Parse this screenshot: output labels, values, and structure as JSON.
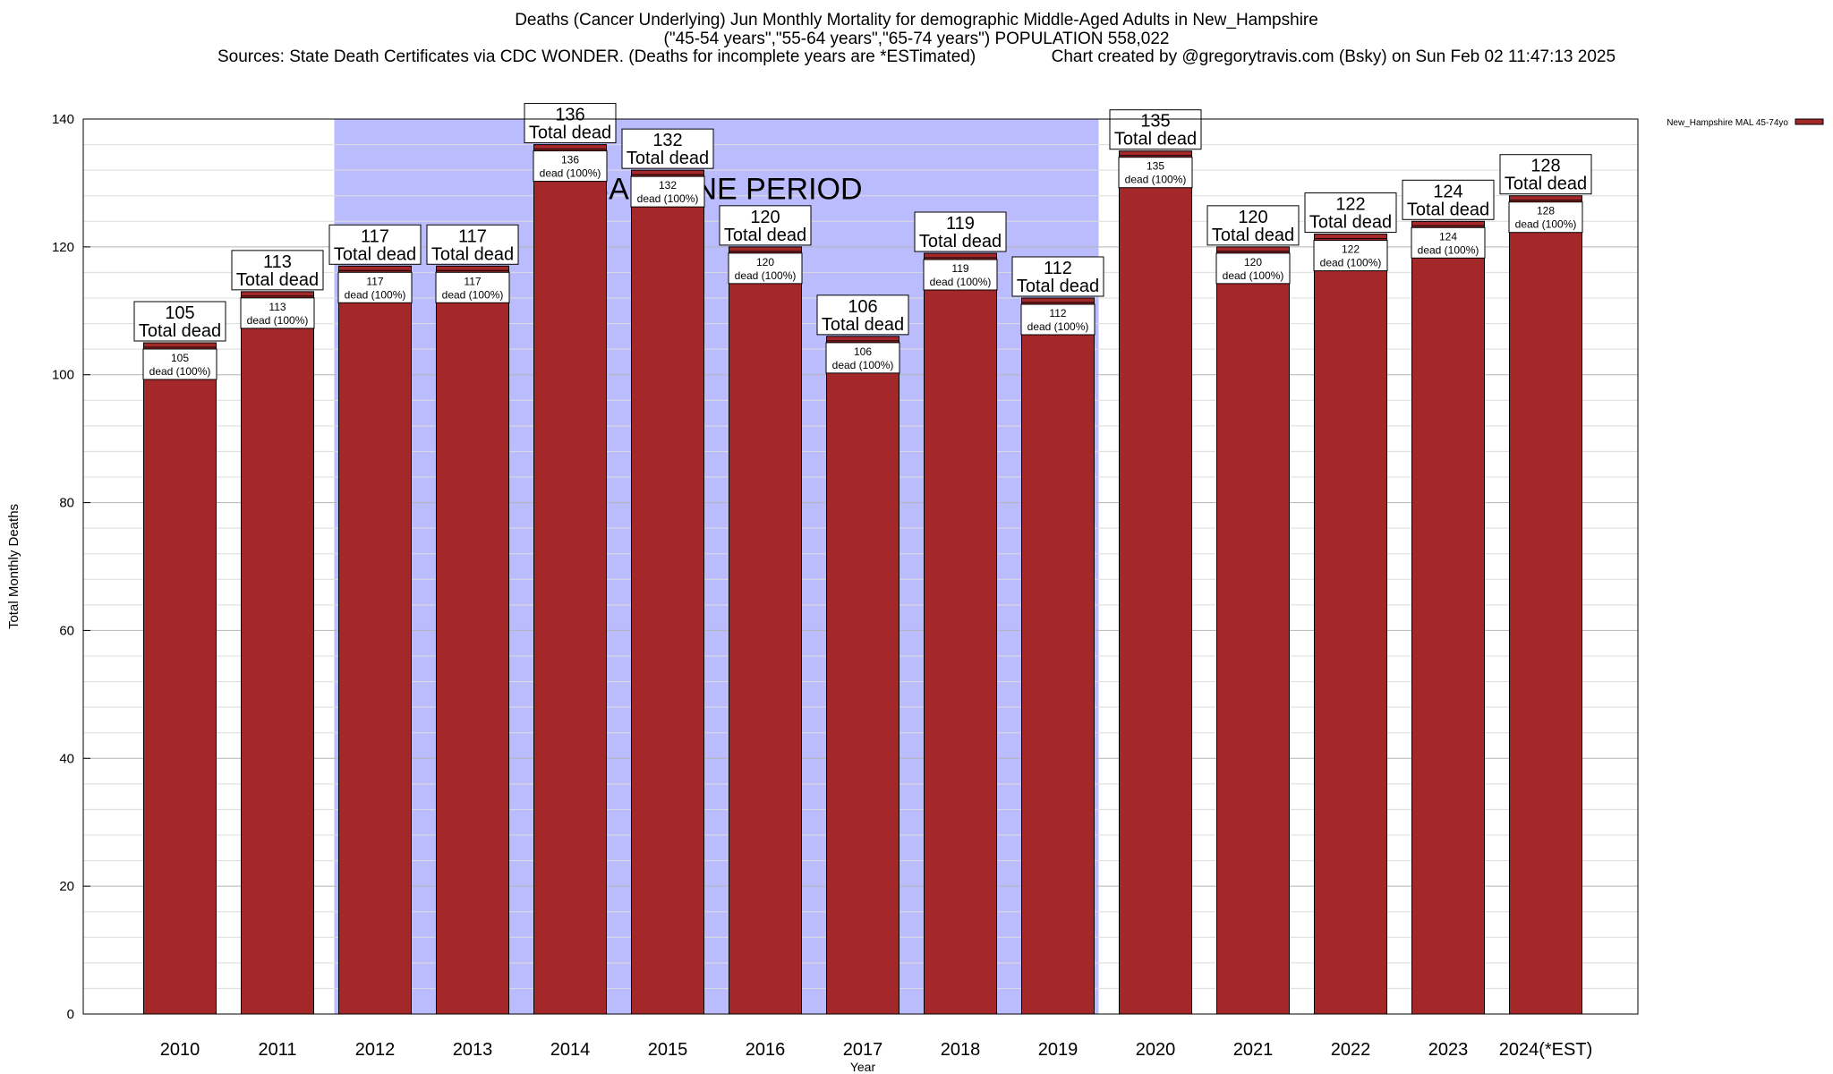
{
  "header": {
    "title_line1": "Deaths (Cancer Underlying) Jun Monthly Mortality for demographic Middle-Aged Adults in New_Hampshire",
    "title_line2": "(\"45-54 years\",\"55-64 years\",\"65-74 years\") POPULATION 558,022",
    "title_line3": "Sources: State Death Certificates via CDC WONDER. (Deaths for incomplete years are *ESTimated)                Chart created by @gregorytravis.com (Bsky) on Sun Feb 02 11:47:13 2025"
  },
  "chart_data": {
    "type": "bar",
    "xlabel": "Year",
    "ylabel": "Total Monthly Deaths",
    "ylim": [
      0,
      140
    ],
    "y_ticks": [
      0,
      20,
      40,
      60,
      80,
      100,
      120,
      140
    ],
    "categories": [
      "2010",
      "2011",
      "2012",
      "2013",
      "2014",
      "2015",
      "2016",
      "2017",
      "2018",
      "2019",
      "2020",
      "2021",
      "2022",
      "2023",
      "2024(*EST)"
    ],
    "series": [
      {
        "name": "New_Hampshire MAL 45-74yo",
        "values": [
          105,
          113,
          117,
          117,
          136,
          132,
          120,
          106,
          119,
          112,
          135,
          120,
          122,
          124,
          128
        ]
      }
    ],
    "total_label_suffix": "Total dead",
    "inner_label_suffix": "dead (100%)",
    "baseline": {
      "label": "BASELINE PERIOD",
      "start_category": "2012",
      "end_category": "2019"
    },
    "legend_position": "top-right",
    "grid": true,
    "colors": {
      "bar": "#a4282a",
      "baseline_fill": "#bbbcfe",
      "frame": "#000000",
      "grid": "#c8c8c8"
    }
  }
}
